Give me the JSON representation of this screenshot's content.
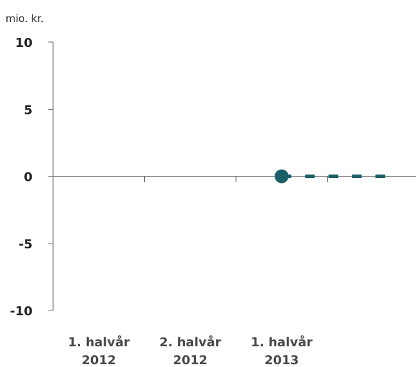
{
  "chart_data": {
    "type": "line",
    "unit_label": "mio. kr.",
    "categories": [
      [
        "1. halvår",
        "2012"
      ],
      [
        "2. halvår",
        "2012"
      ],
      [
        "1. halvår",
        "2013"
      ]
    ],
    "ylim": [
      -10,
      10
    ],
    "yticks": [
      "10",
      "5",
      "0",
      "-5",
      "-10"
    ],
    "series": [
      {
        "style": "marker",
        "x": [
          2.5
        ],
        "y": [
          0
        ],
        "color": "#1a5f66"
      },
      {
        "style": "dashed",
        "x": [
          2.5,
          3.7
        ],
        "y": [
          0,
          0
        ],
        "color": "#1a5f66"
      }
    ],
    "grid": false,
    "legend": "none"
  }
}
